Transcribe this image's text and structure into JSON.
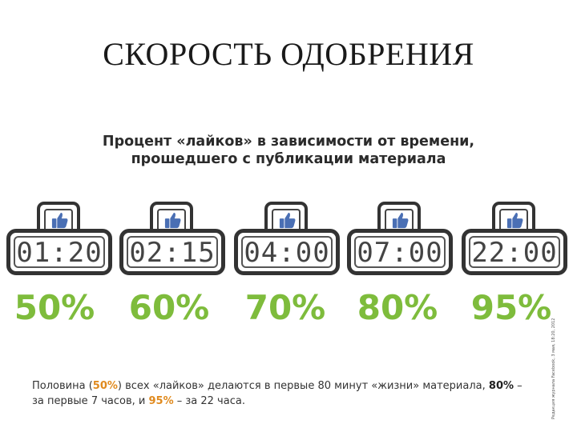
{
  "slide": {
    "title": "СКОРОСТЬ ОДОБРЕНИЯ"
  },
  "infographic": {
    "title_line1": "Процент «лайков» в зависимости от времени,",
    "title_line2": "прошедшего с публикации материала",
    "clocks": [
      {
        "time": "01:20",
        "percent": "50%"
      },
      {
        "time": "02:15",
        "percent": "60%"
      },
      {
        "time": "04:00",
        "percent": "70%"
      },
      {
        "time": "07:00",
        "percent": "80%"
      },
      {
        "time": "22:00",
        "percent": "95%"
      }
    ],
    "icon": "thumbs-up-icon",
    "accent_color": "#7ebc3c",
    "highlight_color": "#e08a1e"
  },
  "caption": {
    "p1": "Половина (",
    "hl1": "50%",
    "p2": ") всех «лайков» делаются в первые 80 минут «жизни» материала, ",
    "b1": "80%",
    "p3": " – за первые 7 часов, и ",
    "hl2": "95%",
    "p4": " – за 22 часа."
  },
  "source": "Редакция журнала Facebook, 3 мая, 18:20, 2012"
}
